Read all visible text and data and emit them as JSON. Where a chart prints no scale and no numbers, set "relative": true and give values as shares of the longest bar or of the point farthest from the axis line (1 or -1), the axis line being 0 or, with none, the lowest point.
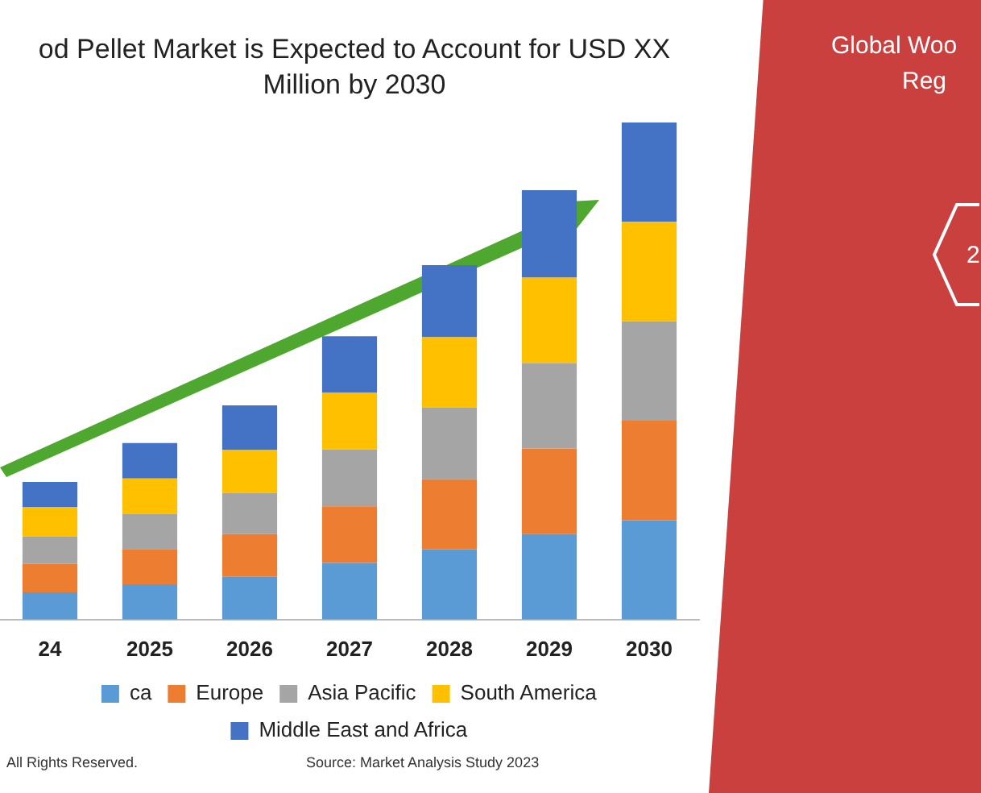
{
  "chart_data": {
    "type": "bar",
    "title": "od Pellet Market is Expected to Account for USD XX Million by 2030",
    "categories": [
      "24",
      "2025",
      "2026",
      "2027",
      "2028",
      "2029",
      "2030"
    ],
    "stacked": true,
    "relative": true,
    "legend": "bottom",
    "grid": false,
    "series": [
      {
        "name": "ca",
        "color": "#5b9bd5",
        "values": [
          0.055,
          0.071,
          0.086,
          0.114,
          0.141,
          0.172,
          0.2
        ]
      },
      {
        "name": "Europe",
        "color": "#ed7d31",
        "values": [
          0.057,
          0.071,
          0.086,
          0.114,
          0.141,
          0.172,
          0.2
        ]
      },
      {
        "name": "Asia Pacific",
        "color": "#a5a5a5",
        "values": [
          0.055,
          0.071,
          0.083,
          0.114,
          0.145,
          0.172,
          0.2
        ]
      },
      {
        "name": "South America",
        "color": "#ffc000",
        "values": [
          0.059,
          0.071,
          0.086,
          0.114,
          0.141,
          0.172,
          0.2
        ]
      },
      {
        "name": "Middle East and Africa",
        "color": "#4472c4",
        "values": [
          0.051,
          0.071,
          0.09,
          0.114,
          0.145,
          0.176,
          0.2
        ]
      }
    ],
    "annotations": [
      "Global Woo",
      "Reg",
      "2",
      "All Rights Reserved.",
      "Source: Market Analysis Study 2023"
    ]
  }
}
